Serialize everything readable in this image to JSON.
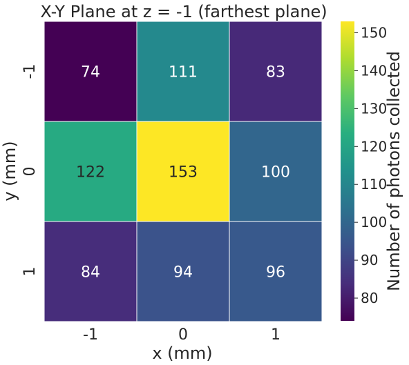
{
  "chart_data": {
    "type": "heatmap",
    "title": "X-Y Plane at z = -1 (farthest plane)",
    "xlabel": "x (mm)",
    "ylabel": "y (mm)",
    "x_categories": [
      "-1",
      "0",
      "1"
    ],
    "y_categories": [
      "-1",
      "0",
      "1"
    ],
    "values": [
      [
        74,
        111,
        83
      ],
      [
        122,
        153,
        100
      ],
      [
        84,
        94,
        96
      ]
    ],
    "colormap": "viridis",
    "colorbar": {
      "label": "Number of photons collected",
      "vmin": 74,
      "vmax": 153,
      "ticks": [
        80,
        90,
        100,
        110,
        120,
        130,
        140,
        150
      ]
    },
    "annotation_colors": {
      "dark_cell_text": "#ffffff",
      "light_cell_text": "#262626"
    },
    "grid": false,
    "cell_border_color": "#ffffff"
  }
}
